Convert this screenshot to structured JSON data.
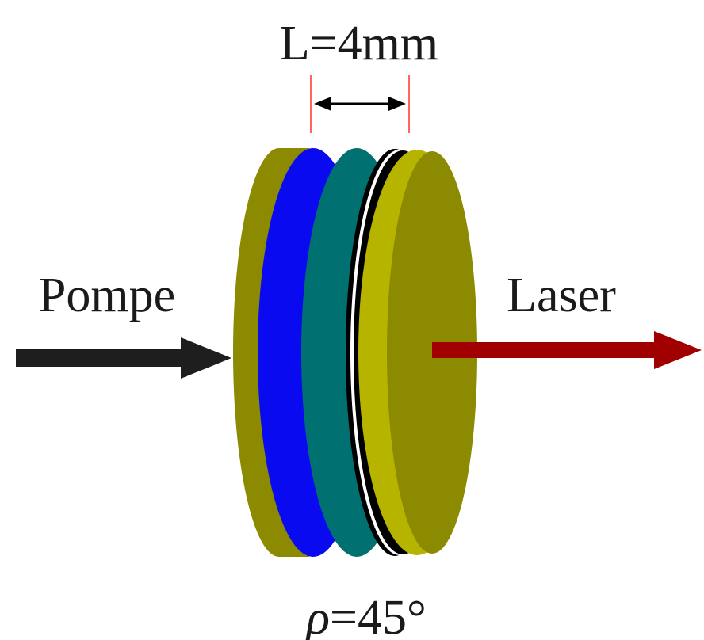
{
  "labels": {
    "length": "L=4mm",
    "pump": "Pompe",
    "laser": "Laser",
    "rho_symbol": "ρ",
    "rho_value": "=45°"
  },
  "colors": {
    "outer_disk": "#8c8a00",
    "outer_disk_edge": "#b7b400",
    "blue_layer": "#0a0af0",
    "teal_layer": "#007070",
    "coating": "#000000",
    "pump_arrow": "#1e1e1e",
    "laser_arrow": "#a00000",
    "dimension_lines": "#ff3333",
    "dimension_arrow": "#000000"
  },
  "icons": {
    "pump_arrow": "arrow-right-icon",
    "laser_arrow": "arrow-right-icon",
    "dimension": "double-arrow-icon"
  }
}
